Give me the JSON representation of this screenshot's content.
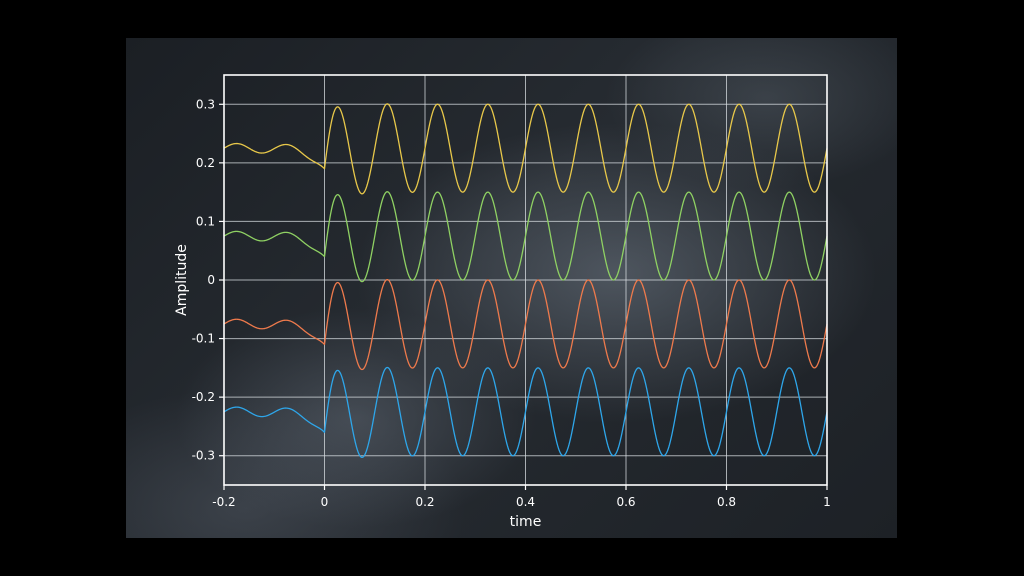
{
  "chart_data": {
    "type": "line",
    "title": "",
    "xlabel": "time",
    "ylabel": "Amplitude",
    "xlim": [
      -0.2,
      1.0
    ],
    "ylim": [
      -0.35,
      0.35
    ],
    "grid": true,
    "legend": "none",
    "x_ticks": [
      {
        "value": -0.2,
        "label": "-0.2"
      },
      {
        "value": 0,
        "label": "0"
      },
      {
        "value": 0.2,
        "label": "0.2"
      },
      {
        "value": 0.4,
        "label": "0.4"
      },
      {
        "value": 0.6,
        "label": "0.6"
      },
      {
        "value": 0.8,
        "label": "0.8"
      },
      {
        "value": 1.0,
        "label": "1"
      }
    ],
    "y_ticks": [
      {
        "value": 0.3,
        "label": "0.3"
      },
      {
        "value": 0.2,
        "label": "0.2"
      },
      {
        "value": 0.1,
        "label": "0.1"
      },
      {
        "value": 0,
        "label": "0"
      },
      {
        "value": -0.1,
        "label": "-0.1"
      },
      {
        "value": -0.2,
        "label": "-0.2"
      },
      {
        "value": -0.3,
        "label": "-0.3"
      }
    ],
    "series_function": "offset + transient_ripple(t<0) + 0.075*sin(2*pi*10*t)",
    "frequency": 10,
    "amplitude": 0.075,
    "pre_ripple_amplitude": 0.008,
    "series": [
      {
        "offset": 0.225,
        "color": "#e8c84a"
      },
      {
        "offset": 0.075,
        "color": "#8fd163"
      },
      {
        "offset": -0.075,
        "color": "#ee7a4c"
      },
      {
        "offset": -0.225,
        "color": "#2ea6ea"
      }
    ]
  }
}
